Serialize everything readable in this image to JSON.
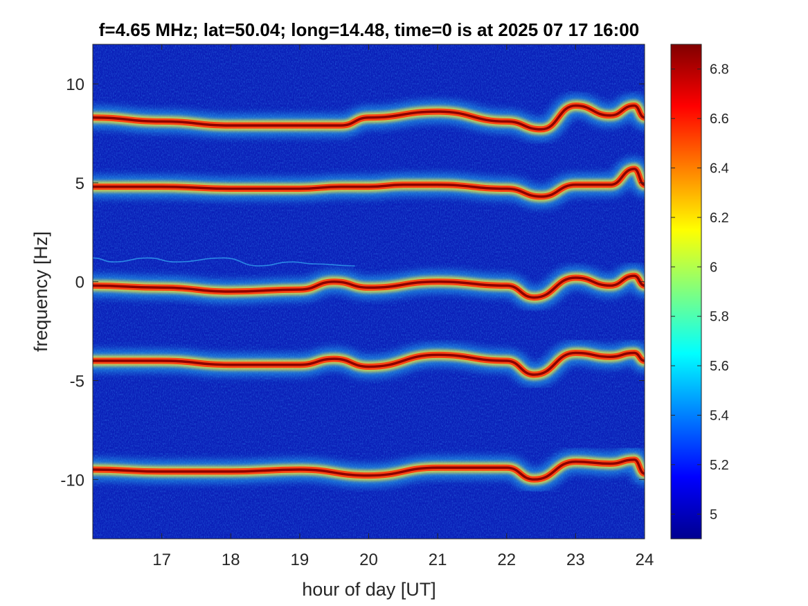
{
  "chart_data": {
    "type": "heatmap",
    "title": "f=4.65 MHz;  lat=50.04; long=14.48, time=0 is at 2025 07 17 16:00",
    "xlabel": "hour of day [UT]",
    "ylabel": "frequency [Hz]",
    "xlim": [
      16.0,
      24.0
    ],
    "ylim": [
      -13.0,
      12.0
    ],
    "xticks": [
      17,
      18,
      19,
      20,
      21,
      22,
      23,
      24
    ],
    "yticks": [
      -10,
      -5,
      0,
      5,
      10
    ],
    "colormap": "jet",
    "clim": [
      4.9,
      6.9
    ],
    "colorbar_ticks": [
      5,
      5.2,
      5.4,
      5.6,
      5.8,
      6,
      6.2,
      6.4,
      6.6,
      6.8
    ],
    "grid": false,
    "bands": [
      {
        "name": "",
        "x": [
          16.0,
          17.0,
          18.0,
          19.0,
          19.6,
          20.0,
          21.0,
          22.0,
          22.5,
          23.0,
          23.5,
          23.85,
          24.0
        ],
        "y": [
          8.3,
          8.1,
          7.9,
          7.9,
          7.9,
          8.3,
          8.6,
          8.1,
          7.7,
          8.9,
          8.4,
          8.9,
          8.3
        ]
      },
      {
        "name": "",
        "x": [
          16.0,
          17.0,
          18.0,
          19.0,
          19.6,
          20.0,
          20.5,
          21.0,
          22.0,
          22.5,
          23.0,
          23.5,
          23.85,
          24.0
        ],
        "y": [
          4.8,
          4.8,
          4.7,
          4.7,
          4.8,
          4.8,
          4.9,
          4.9,
          4.7,
          4.3,
          4.9,
          4.9,
          5.7,
          4.9
        ]
      },
      {
        "name": "",
        "x": [
          16.0,
          17.0,
          18.0,
          19.0,
          19.5,
          20.0,
          21.0,
          22.0,
          22.4,
          23.0,
          23.5,
          23.85,
          24.0
        ],
        "y": [
          -0.2,
          -0.3,
          -0.5,
          -0.4,
          0.0,
          -0.3,
          0.0,
          -0.2,
          -0.8,
          0.2,
          -0.2,
          0.3,
          -0.2
        ]
      },
      {
        "name": "",
        "x": [
          16.0,
          17.0,
          18.0,
          19.0,
          19.5,
          20.0,
          21.0,
          22.0,
          22.4,
          23.0,
          23.5,
          23.85,
          24.0
        ],
        "y": [
          -4.0,
          -4.0,
          -4.2,
          -4.2,
          -3.9,
          -4.3,
          -3.7,
          -4.0,
          -4.7,
          -3.6,
          -3.8,
          -3.6,
          -4.0
        ]
      },
      {
        "name": "",
        "x": [
          16.0,
          17.0,
          18.0,
          19.0,
          20.0,
          21.0,
          22.0,
          22.4,
          23.0,
          23.5,
          23.85,
          24.0
        ],
        "y": [
          -9.5,
          -9.6,
          -9.6,
          -9.5,
          -9.8,
          -9.4,
          -9.4,
          -10.0,
          -9.1,
          -9.2,
          -9.0,
          -9.7
        ]
      }
    ],
    "traces": [
      {
        "x": [
          16.0,
          16.3,
          16.8,
          17.2,
          17.9,
          18.4,
          18.9,
          19.2,
          19.8
        ],
        "y": [
          1.2,
          1.0,
          1.2,
          1.0,
          1.2,
          0.8,
          1.0,
          0.9,
          0.8
        ]
      }
    ]
  }
}
